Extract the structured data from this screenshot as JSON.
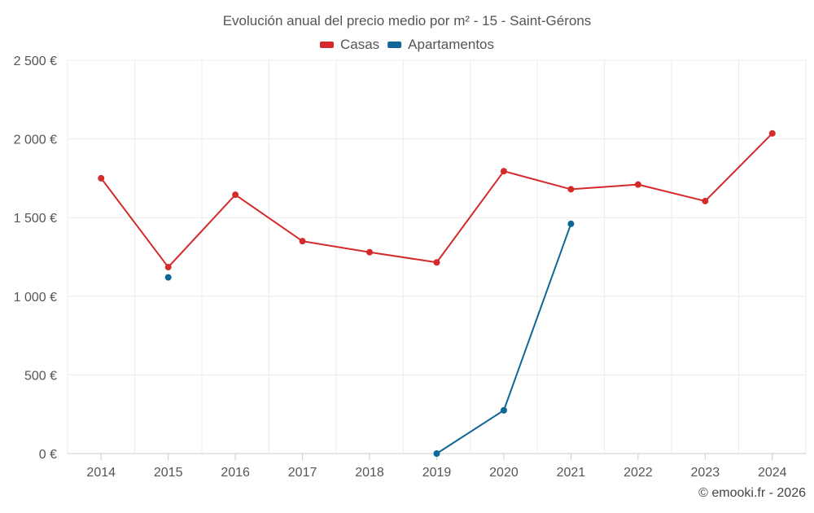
{
  "chart_data": {
    "type": "line",
    "title": "Evolución anual del precio medio por m² - 15 - Saint-Gérons",
    "categories": [
      "2014",
      "2015",
      "2016",
      "2017",
      "2018",
      "2019",
      "2020",
      "2021",
      "2022",
      "2023",
      "2024"
    ],
    "ylim": [
      0,
      2500
    ],
    "yticks": [
      0,
      500,
      1000,
      1500,
      2000,
      2500
    ],
    "ytick_labels": [
      "0 €",
      "500 €",
      "1 000 €",
      "1 500 €",
      "2 000 €",
      "2 500 €"
    ],
    "grid": true,
    "legend_position": "top-center",
    "series": [
      {
        "name": "Casas",
        "color": "#d42a2a",
        "values": [
          1750,
          1185,
          1645,
          1350,
          1280,
          1215,
          1795,
          1680,
          1710,
          1605,
          2035
        ]
      },
      {
        "name": "Apartamentos",
        "color": "#0e6796",
        "values": [
          null,
          1120,
          null,
          null,
          null,
          0,
          275,
          1460,
          null,
          null,
          null
        ]
      }
    ]
  },
  "credit": "© emooki.fr - 2026"
}
